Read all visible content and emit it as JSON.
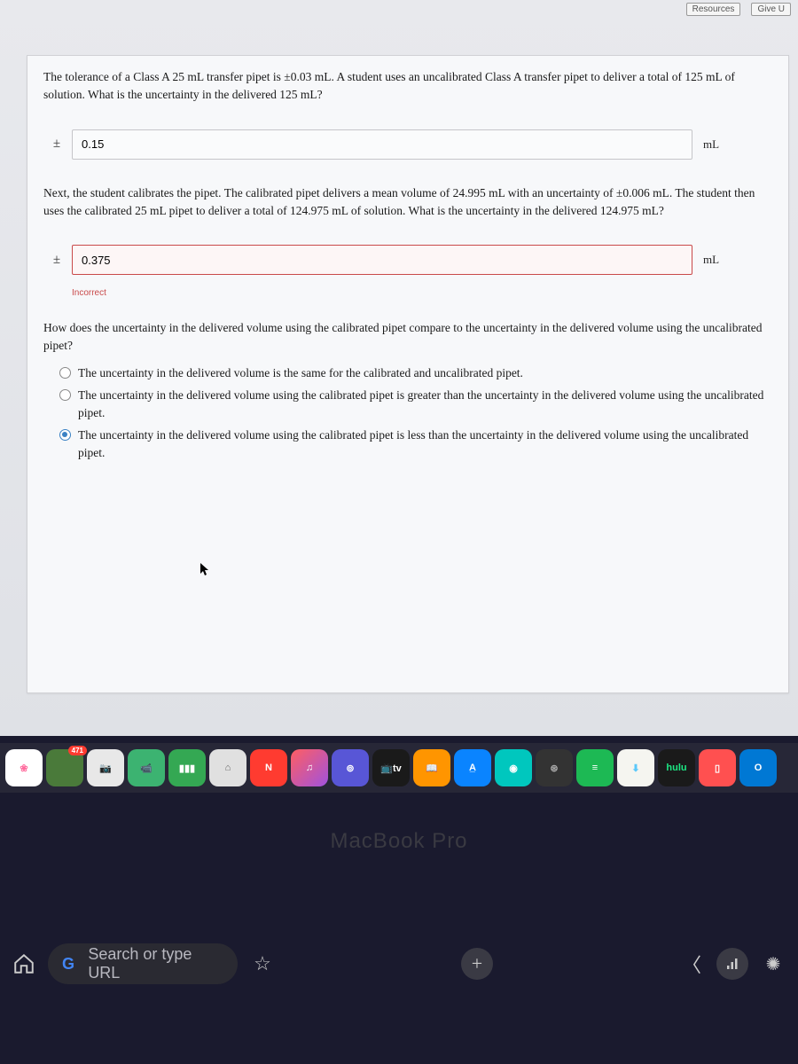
{
  "topbar": {
    "resources": "Resources",
    "give": "Give U"
  },
  "question": {
    "part1": "The tolerance of a Class A 25 mL transfer pipet is ±0.03 mL. A student uses an uncalibrated Class A transfer pipet to deliver a total of 125 mL of solution. What is the uncertainty in the delivered 125 mL?",
    "answer1": "0.15",
    "unit": "mL",
    "part2": "Next, the student calibrates the pipet. The calibrated pipet delivers a mean volume of 24.995 mL with an uncertainty of ±0.006 mL. The student then uses the calibrated 25 mL pipet to deliver a total of 124.975 mL of solution. What is the uncertainty in the delivered 124.975 mL?",
    "answer2": "0.375",
    "incorrect": "Incorrect",
    "part3": "How does the uncertainty in the delivered volume using the calibrated pipet compare to the uncertainty in the delivered volume using the uncalibrated pipet?",
    "options": [
      "The uncertainty in the delivered volume is the same for the calibrated and uncalibrated pipet.",
      "The uncertainty in the delivered volume using the calibrated pipet is greater than the uncertainty in the delivered volume using the uncalibrated pipet.",
      "The uncertainty in the delivered volume using the calibrated pipet is less than the uncertainty in the delivered volume using the uncalibrated pipet."
    ],
    "selected": 2,
    "pm": "±"
  },
  "dock": {
    "icons": [
      {
        "bg": "#ffffff",
        "label": "❀",
        "fg": "#ff6b9d"
      },
      {
        "bg": "#4a7a3a",
        "label": "",
        "fg": "#fff",
        "badge": "471"
      },
      {
        "bg": "#e8e8e8",
        "label": "📷",
        "fg": "#444"
      },
      {
        "bg": "#3cb371",
        "label": "📹",
        "fg": "#fff"
      },
      {
        "bg": "#34a853",
        "label": "▮▮▮",
        "fg": "#fff"
      },
      {
        "bg": "#e0e0e0",
        "label": "⌂",
        "fg": "#666"
      },
      {
        "bg": "#ff3b30",
        "label": "N",
        "fg": "#fff"
      },
      {
        "bg": "linear-gradient(135deg,#ff5e62,#a052de)",
        "label": "♫",
        "fg": "#fff"
      },
      {
        "bg": "#5856d6",
        "label": "⊚",
        "fg": "#fff"
      },
      {
        "bg": "#1a1a1a",
        "label": "📺tv",
        "fg": "#fff"
      },
      {
        "bg": "#ff9500",
        "label": "📖",
        "fg": "#fff"
      },
      {
        "bg": "#0a84ff",
        "label": "A̲",
        "fg": "#fff"
      },
      {
        "bg": "#00c7be",
        "label": "◉",
        "fg": "#fff"
      },
      {
        "bg": "#333333",
        "label": "⊛",
        "fg": "#aaa"
      },
      {
        "bg": "#1db954",
        "label": "≡",
        "fg": "#fff"
      },
      {
        "bg": "#f5f5f0",
        "label": "⬇",
        "fg": "#5ac8fa"
      },
      {
        "bg": "#1a1a1a",
        "label": "hulu",
        "fg": "#1ce783"
      },
      {
        "bg": "#ff5050",
        "label": "▯",
        "fg": "#fff"
      },
      {
        "bg": "#0078d4",
        "label": "O",
        "fg": "#fff"
      }
    ]
  },
  "macbook": "MacBook Pro",
  "phone": {
    "search_placeholder": "Search or type URL"
  }
}
